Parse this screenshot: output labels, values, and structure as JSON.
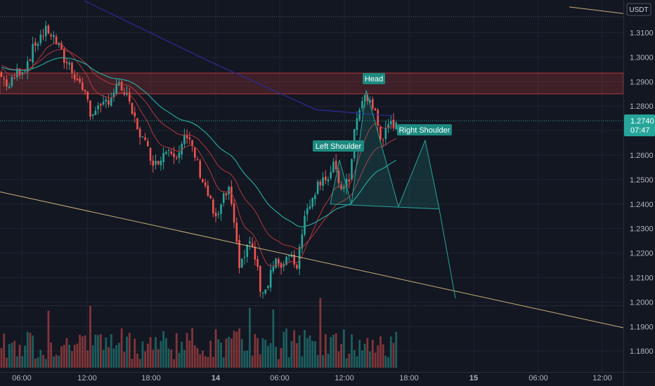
{
  "chart_data": {
    "type": "candlestick",
    "title": "",
    "currency_label": "USDT",
    "current_price": "1.2740",
    "countdown": "07:47",
    "y_ticks": [
      "1.3100",
      "1.3000",
      "1.2900",
      "1.2800",
      "1.2700",
      "1.2600",
      "1.2500",
      "1.2400",
      "1.2300",
      "1.2200",
      "1.2100",
      "1.2000",
      "1.1900",
      "1.1800"
    ],
    "x_ticks": [
      "06:00",
      "12:00",
      "18:00",
      "14",
      "06:00",
      "12:00",
      "18:00",
      "15",
      "06:00",
      "12:00"
    ],
    "ylim": [
      1.1755,
      1.3205
    ],
    "resistance_zone": [
      1.285,
      1.2935
    ],
    "pattern_labels": {
      "left_shoulder": "Left Shoulder",
      "head": "Head",
      "right_shoulder": "Right Shoulder"
    },
    "pattern_points": {
      "left_shoulder_peak": 1.258,
      "head_peak": 1.2865,
      "right_shoulder_peak": 1.266,
      "neckline": 1.239,
      "projected_target": 1.2015
    },
    "colors": {
      "up": "#26a69a",
      "down": "#ef5350",
      "zone": "#b2383b",
      "ma_fast": "#b2383b",
      "ma_mid": "#26a69a",
      "ma_slow": "#2a2a9a",
      "trendline": "#e6c98a",
      "label_bg": "#1d8a80"
    }
  }
}
